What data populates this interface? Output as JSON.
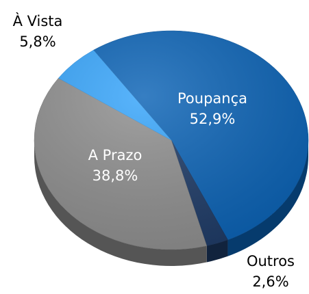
{
  "chart_data": {
    "type": "pie",
    "categories": [
      "Poupança",
      "Outros",
      "A Prazo",
      "À Vista"
    ],
    "values": [
      52.9,
      2.6,
      38.8,
      5.8
    ],
    "value_labels": [
      "52,9%",
      "2,6%",
      "38,8%",
      "5,8%"
    ],
    "colors": [
      "#0a62b5",
      "#1d3a66",
      "#8e8e8e",
      "#35a4fb"
    ]
  }
}
